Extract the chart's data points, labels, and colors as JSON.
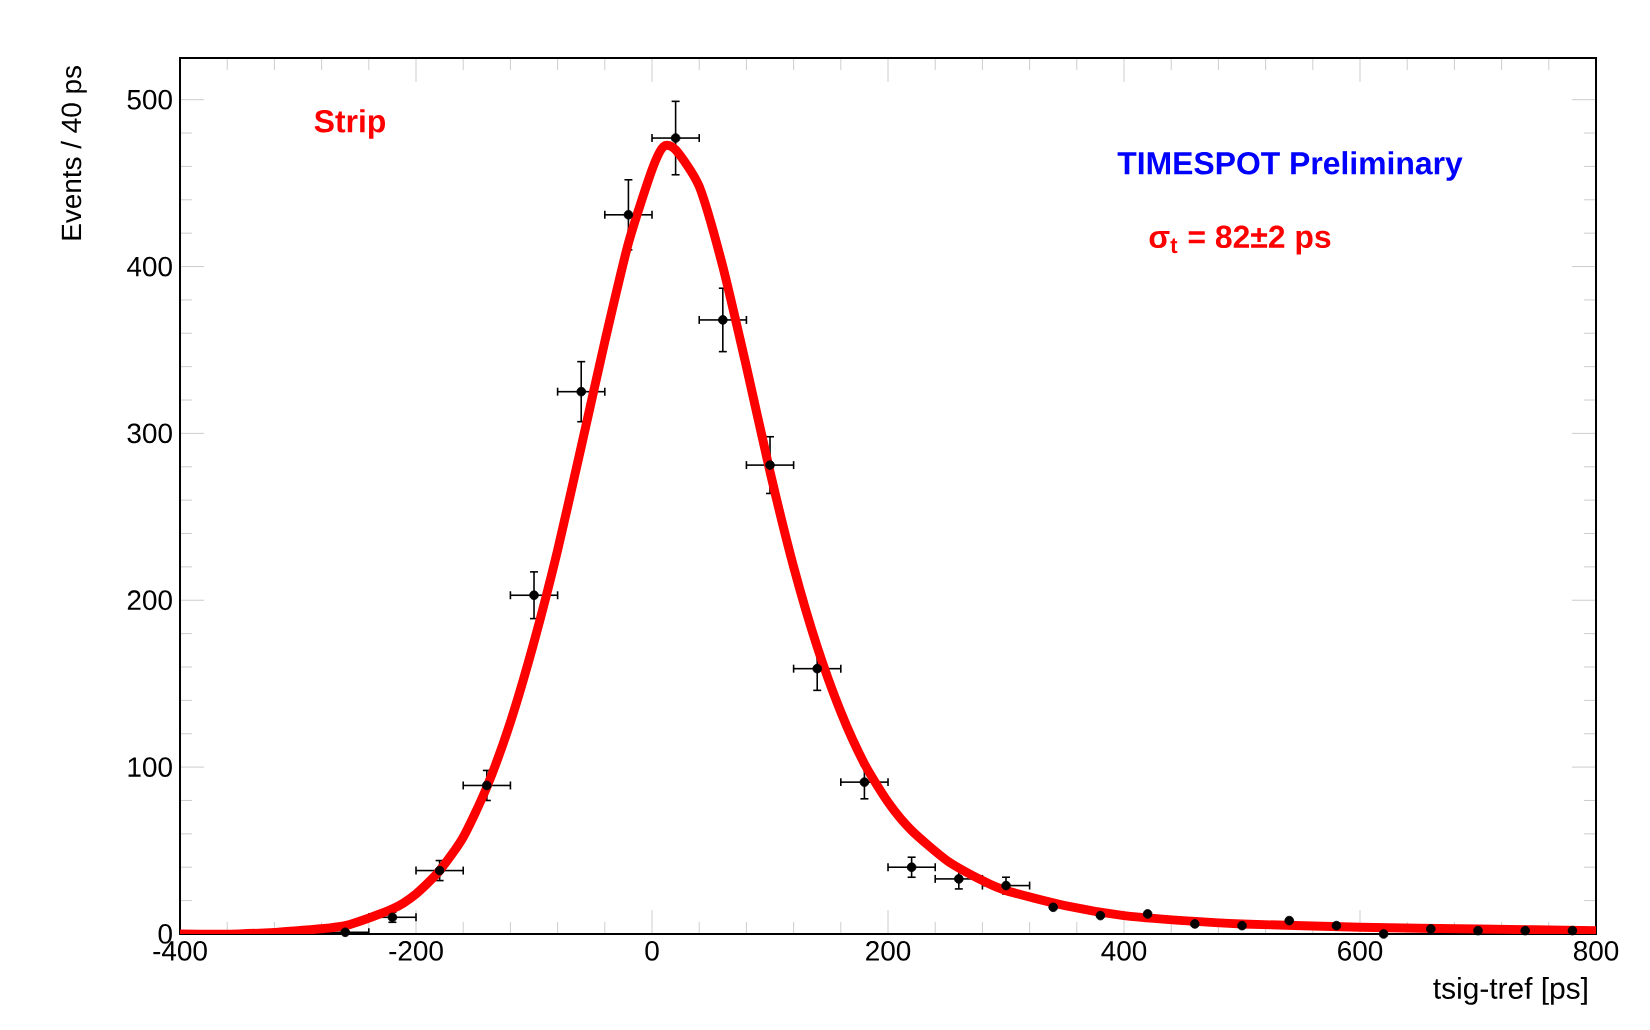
{
  "chart_data": {
    "type": "scatter",
    "xlabel": "tsig-tref [ps]",
    "ylabel": "Events / 40 ps",
    "annotations": [
      "Strip",
      "TIMESPOT Preliminary",
      "σ$_{t}$ = 82±2 ps"
    ],
    "xlim": [
      -400,
      800
    ],
    "ylim": [
      0,
      525
    ],
    "xticks": [
      -400,
      -200,
      0,
      200,
      400,
      600,
      800
    ],
    "yticks": [
      0,
      100,
      200,
      300,
      400,
      500
    ],
    "series": [
      {
        "color": "#000000",
        "marker": "circle",
        "x": [
          -260,
          -220,
          -180,
          -140,
          -100,
          -60,
          -20,
          20,
          60,
          100,
          140,
          180,
          220,
          260,
          300,
          340,
          380,
          420,
          460,
          500,
          540,
          580,
          620,
          660,
          700,
          740,
          780
        ],
        "values": [
          1,
          10,
          38,
          89,
          203,
          325,
          431,
          477,
          368,
          281,
          159,
          91,
          40,
          33,
          29,
          16,
          11,
          12,
          6,
          5,
          8,
          5,
          0,
          3,
          2,
          2,
          2
        ],
        "errors": [
          1,
          3,
          6,
          9,
          14,
          18,
          21,
          22,
          19,
          17,
          13,
          10,
          6,
          6,
          5,
          null,
          null,
          null,
          null,
          null,
          null,
          null,
          null,
          null,
          null,
          null,
          null
        ],
        "xerrors": [
          20,
          20,
          20,
          20,
          20,
          20,
          20,
          20,
          20,
          20,
          20,
          20,
          20,
          20,
          20,
          null,
          null,
          null,
          null,
          null,
          null,
          null,
          null,
          null,
          null,
          null,
          null
        ]
      },
      {
        "type": "line",
        "color": "#ff0000",
        "marker": "none",
        "x": [
          -400,
          -350,
          -300,
          -260,
          -220,
          -200,
          -180,
          -160,
          -140,
          -120,
          -100,
          -80,
          -60,
          -40,
          -20,
          0,
          10,
          20,
          40,
          60,
          80,
          100,
          120,
          140,
          160,
          180,
          200,
          220,
          250,
          280,
          300,
          350,
          400,
          450,
          500,
          600,
          700,
          800
        ],
        "values": [
          0,
          0,
          2,
          5,
          15,
          24,
          38,
          58,
          88,
          127,
          175,
          230,
          292,
          355,
          414,
          458,
          472,
          470,
          448,
          400,
          340,
          277,
          220,
          172,
          133,
          102,
          79,
          62,
          44,
          32,
          26,
          17,
          11,
          8,
          6,
          4,
          3,
          2
        ]
      }
    ]
  }
}
